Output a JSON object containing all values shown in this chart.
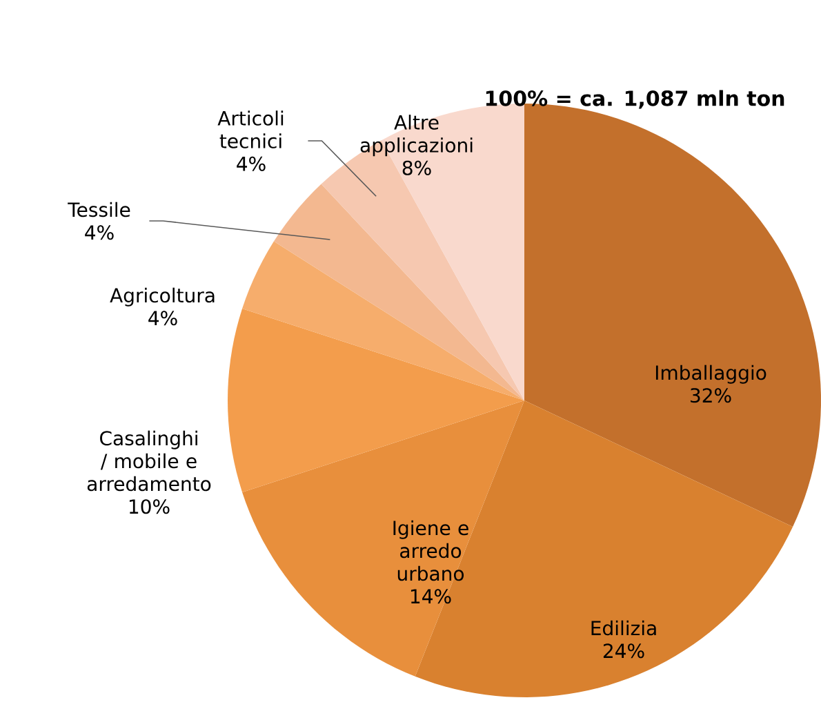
{
  "chart_data": {
    "type": "pie",
    "title": "100% = ca. 1,087 mln ton",
    "categories": [
      "Imballaggio",
      "Edilizia",
      "Igiene e arredo urbano",
      "Casalinghi / mobile e arredamento",
      "Agricoltura",
      "Tessile",
      "Articoli tecnici",
      "Altre applicazioni"
    ],
    "values": [
      32,
      24,
      14,
      10,
      4,
      4,
      4,
      8
    ],
    "value_labels": [
      "32%",
      "24%",
      "14%",
      "10%",
      "4%",
      "4%",
      "4%",
      "8%"
    ],
    "colors": [
      "#c3702c",
      "#d9812f",
      "#e88f3c",
      "#f39d4c",
      "#f6ad6c",
      "#f3b890",
      "#f6c8b0",
      "#f9d9cd"
    ]
  }
}
